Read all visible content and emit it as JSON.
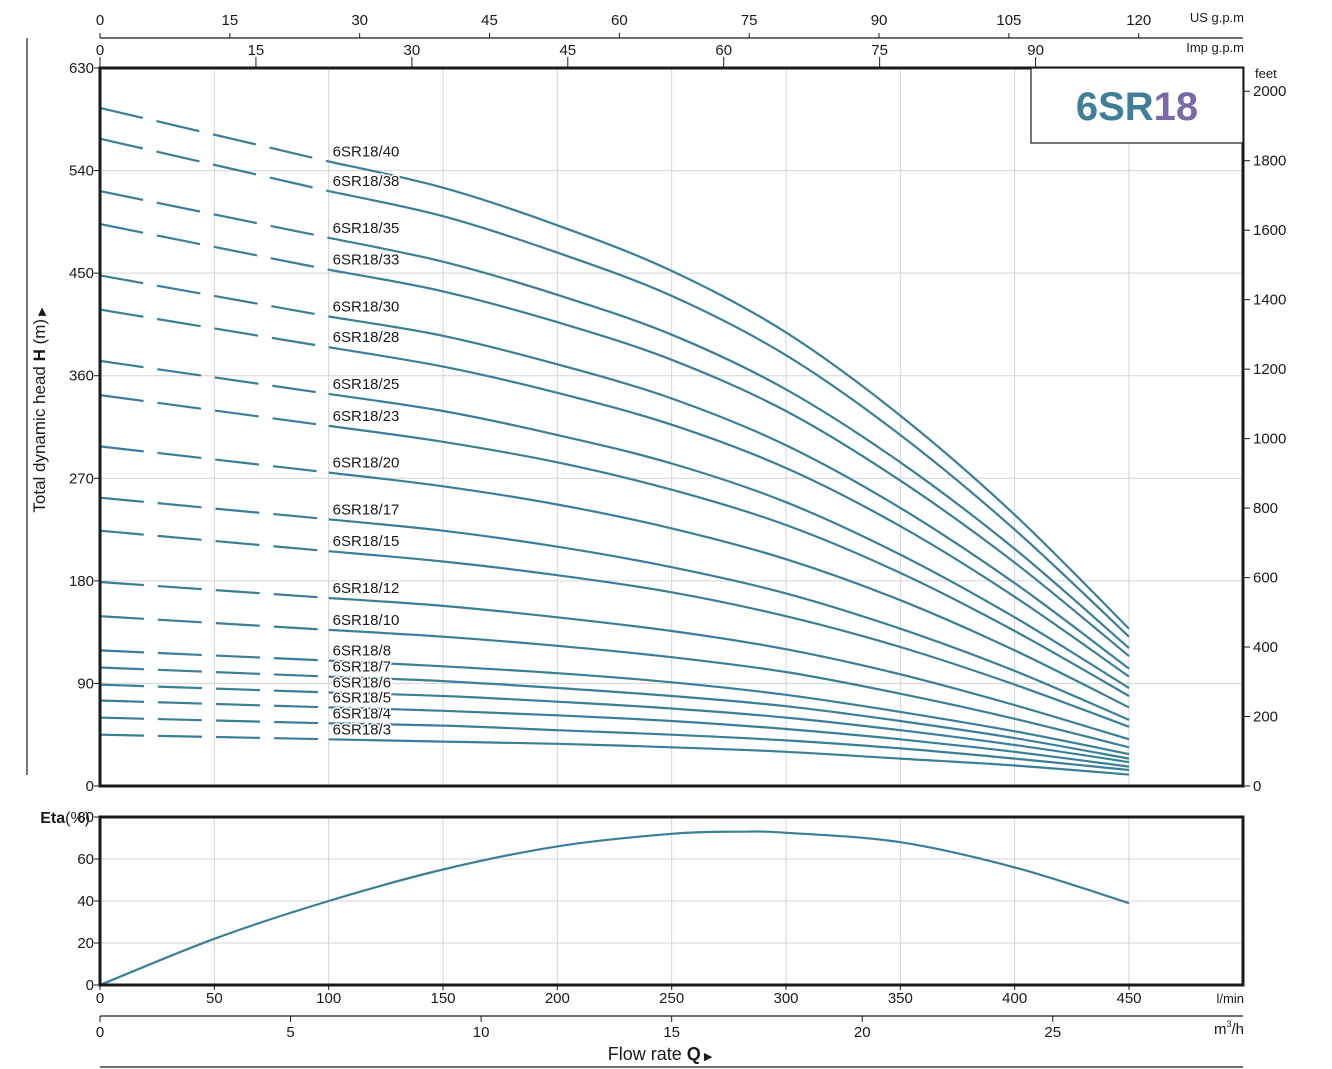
{
  "chart_data": [
    {
      "type": "line",
      "title": "6SR18",
      "title_parts": [
        "6SR",
        "18"
      ],
      "title_colors": [
        "#3f7f98",
        "#7b6aa9"
      ],
      "curve_color": "#3a7f98",
      "ylabel_prefix": "Total dynamic head ",
      "ylabel_bold": "H",
      "ylabel_suffix": " (m)",
      "ylim": [
        0,
        630
      ],
      "yticks": [
        0,
        90,
        180,
        270,
        360,
        450,
        540,
        630
      ],
      "feet_label": "feet",
      "feet_ticks": [
        0,
        200,
        400,
        600,
        800,
        1000,
        1200,
        1400,
        1600,
        1800,
        2000
      ],
      "xlim": [
        0,
        450
      ],
      "us_gpm_label": "US g.p.m",
      "us_gpm_ticks": [
        0,
        15,
        30,
        45,
        60,
        75,
        90,
        105,
        120
      ],
      "imp_gpm_label": "Imp g.p.m",
      "imp_gpm_ticks": [
        0,
        15,
        30,
        45,
        60,
        75,
        90
      ],
      "dashed_until_x": 100,
      "grid": true,
      "series": [
        {
          "name": "6SR18/40",
          "points": [
            [
              0,
              595
            ],
            [
              100,
              548
            ],
            [
              150,
              525
            ],
            [
              200,
              492
            ],
            [
              250,
              452
            ],
            [
              300,
              398
            ],
            [
              350,
              325
            ],
            [
              400,
              238
            ],
            [
              450,
              138
            ]
          ]
        },
        {
          "name": "6SR18/38",
          "points": [
            [
              0,
              568
            ],
            [
              100,
              522
            ],
            [
              150,
              500
            ],
            [
              200,
              468
            ],
            [
              250,
              430
            ],
            [
              300,
              378
            ],
            [
              350,
              308
            ],
            [
              400,
              225
            ],
            [
              450,
              131
            ]
          ]
        },
        {
          "name": "6SR18/35",
          "points": [
            [
              0,
              522
            ],
            [
              100,
              481
            ],
            [
              150,
              460
            ],
            [
              200,
              431
            ],
            [
              250,
              396
            ],
            [
              300,
              348
            ],
            [
              350,
              284
            ],
            [
              400,
              208
            ],
            [
              450,
              121
            ]
          ]
        },
        {
          "name": "6SR18/33",
          "points": [
            [
              0,
              493
            ],
            [
              100,
              453
            ],
            [
              150,
              434
            ],
            [
              200,
              407
            ],
            [
              250,
              374
            ],
            [
              300,
              329
            ],
            [
              350,
              268
            ],
            [
              400,
              196
            ],
            [
              450,
              114
            ]
          ]
        },
        {
          "name": "6SR18/30",
          "points": [
            [
              0,
              448
            ],
            [
              100,
              412
            ],
            [
              150,
              395
            ],
            [
              200,
              370
            ],
            [
              250,
              340
            ],
            [
              300,
              299
            ],
            [
              350,
              244
            ],
            [
              400,
              178
            ],
            [
              450,
              103
            ]
          ]
        },
        {
          "name": "6SR18/28",
          "points": [
            [
              0,
              418
            ],
            [
              100,
              385
            ],
            [
              150,
              368
            ],
            [
              200,
              345
            ],
            [
              250,
              317
            ],
            [
              300,
              279
            ],
            [
              350,
              228
            ],
            [
              400,
              166
            ],
            [
              450,
              96
            ]
          ]
        },
        {
          "name": "6SR18/25",
          "points": [
            [
              0,
              373
            ],
            [
              100,
              344
            ],
            [
              150,
              329
            ],
            [
              200,
              308
            ],
            [
              250,
              283
            ],
            [
              300,
              249
            ],
            [
              350,
              203
            ],
            [
              400,
              148
            ],
            [
              450,
              86
            ]
          ]
        },
        {
          "name": "6SR18/23",
          "points": [
            [
              0,
              343
            ],
            [
              100,
              316
            ],
            [
              150,
              302
            ],
            [
              200,
              284
            ],
            [
              250,
              260
            ],
            [
              300,
              229
            ],
            [
              350,
              187
            ],
            [
              400,
              136
            ],
            [
              450,
              79
            ]
          ]
        },
        {
          "name": "6SR18/20",
          "points": [
            [
              0,
              298
            ],
            [
              100,
              275
            ],
            [
              150,
              263
            ],
            [
              200,
              247
            ],
            [
              250,
              226
            ],
            [
              300,
              199
            ],
            [
              350,
              163
            ],
            [
              400,
              119
            ],
            [
              450,
              69
            ]
          ]
        },
        {
          "name": "6SR18/17",
          "points": [
            [
              0,
              253
            ],
            [
              100,
              234
            ],
            [
              150,
              224
            ],
            [
              200,
              210
            ],
            [
              250,
              192
            ],
            [
              300,
              169
            ],
            [
              350,
              138
            ],
            [
              400,
              101
            ],
            [
              450,
              58
            ]
          ]
        },
        {
          "name": "6SR18/15",
          "points": [
            [
              0,
              224
            ],
            [
              100,
              206
            ],
            [
              150,
              197
            ],
            [
              200,
              185
            ],
            [
              250,
              170
            ],
            [
              300,
              149
            ],
            [
              350,
              122
            ],
            [
              400,
              89
            ],
            [
              450,
              52
            ]
          ]
        },
        {
          "name": "6SR18/12",
          "points": [
            [
              0,
              179
            ],
            [
              100,
              165
            ],
            [
              150,
              158
            ],
            [
              200,
              148
            ],
            [
              250,
              136
            ],
            [
              300,
              120
            ],
            [
              350,
              98
            ],
            [
              400,
              71
            ],
            [
              450,
              41
            ]
          ]
        },
        {
          "name": "6SR18/10",
          "points": [
            [
              0,
              149
            ],
            [
              100,
              137
            ],
            [
              150,
              131
            ],
            [
              200,
              123
            ],
            [
              250,
              113
            ],
            [
              300,
              100
            ],
            [
              350,
              81
            ],
            [
              400,
              59
            ],
            [
              450,
              34
            ]
          ]
        },
        {
          "name": "6SR18/8",
          "points": [
            [
              0,
              119
            ],
            [
              100,
              110
            ],
            [
              150,
              105
            ],
            [
              200,
              99
            ],
            [
              250,
              91
            ],
            [
              300,
              80
            ],
            [
              350,
              65
            ],
            [
              400,
              48
            ],
            [
              450,
              28
            ]
          ]
        },
        {
          "name": "6SR18/7",
          "points": [
            [
              0,
              104
            ],
            [
              100,
              96
            ],
            [
              150,
              92
            ],
            [
              200,
              86
            ],
            [
              250,
              79
            ],
            [
              300,
              70
            ],
            [
              350,
              57
            ],
            [
              400,
              42
            ],
            [
              450,
              24
            ]
          ]
        },
        {
          "name": "6SR18/6",
          "points": [
            [
              0,
              89
            ],
            [
              100,
              82
            ],
            [
              150,
              79
            ],
            [
              200,
              74
            ],
            [
              250,
              68
            ],
            [
              300,
              60
            ],
            [
              350,
              49
            ],
            [
              400,
              36
            ],
            [
              450,
              21
            ]
          ]
        },
        {
          "name": "6SR18/5",
          "points": [
            [
              0,
              75
            ],
            [
              100,
              69
            ],
            [
              150,
              66
            ],
            [
              200,
              62
            ],
            [
              250,
              57
            ],
            [
              300,
              50
            ],
            [
              350,
              41
            ],
            [
              400,
              30
            ],
            [
              450,
              17
            ]
          ]
        },
        {
          "name": "6SR18/4",
          "points": [
            [
              0,
              60
            ],
            [
              100,
              55
            ],
            [
              150,
              53
            ],
            [
              200,
              49
            ],
            [
              250,
              45
            ],
            [
              300,
              40
            ],
            [
              350,
              33
            ],
            [
              400,
              24
            ],
            [
              450,
              14
            ]
          ]
        },
        {
          "name": "6SR18/3",
          "points": [
            [
              0,
              45
            ],
            [
              100,
              41
            ],
            [
              150,
              39
            ],
            [
              200,
              37
            ],
            [
              250,
              34
            ],
            [
              300,
              30
            ],
            [
              350,
              24
            ],
            [
              400,
              18
            ],
            [
              450,
              10
            ]
          ]
        }
      ]
    },
    {
      "type": "line",
      "ylabel_bold": "Eta",
      "ylabel_suffix": "(%)",
      "ylim": [
        0,
        80
      ],
      "yticks": [
        0,
        20,
        40,
        60,
        80
      ],
      "xlim": [
        0,
        450
      ],
      "xticks": [
        0,
        50,
        100,
        150,
        200,
        250,
        300,
        350,
        400,
        450
      ],
      "xunit": "l/min",
      "m3h_ticks": [
        0,
        5,
        10,
        15,
        20,
        25
      ],
      "m3h_unit": "m³/h",
      "m3h_unit_base": "m",
      "m3h_unit_sup": "3",
      "m3h_unit_tail": "/h",
      "xlabel_prefix": "Flow  rate  ",
      "xlabel_bold": "Q",
      "grid": true,
      "series": [
        {
          "points": [
            [
              0,
              0
            ],
            [
              50,
              22
            ],
            [
              100,
              40
            ],
            [
              150,
              55
            ],
            [
              200,
              66
            ],
            [
              250,
              72
            ],
            [
              280,
              73
            ],
            [
              300,
              72.5
            ],
            [
              350,
              68
            ],
            [
              400,
              56
            ],
            [
              450,
              39
            ]
          ]
        }
      ]
    }
  ]
}
